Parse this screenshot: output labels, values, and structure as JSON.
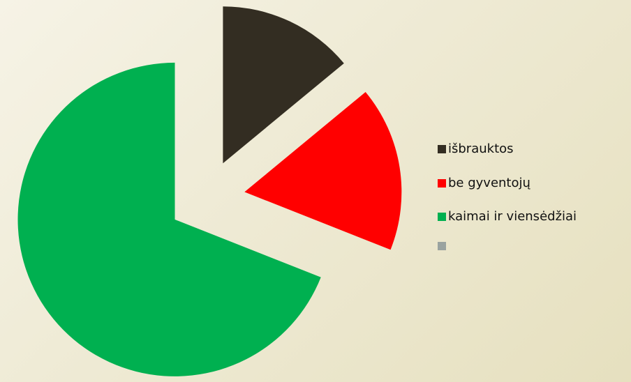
{
  "chart_data": {
    "type": "pie",
    "categories": [
      "išbrauktos",
      "be gyventojų",
      "kaimai ir viensėdžiai",
      null
    ],
    "values": [
      14,
      17,
      69,
      null
    ],
    "colors": [
      "#332d22",
      "#ff0000",
      "#00b050",
      "#9aa3a0"
    ],
    "exploded": true,
    "legend": "right"
  }
}
